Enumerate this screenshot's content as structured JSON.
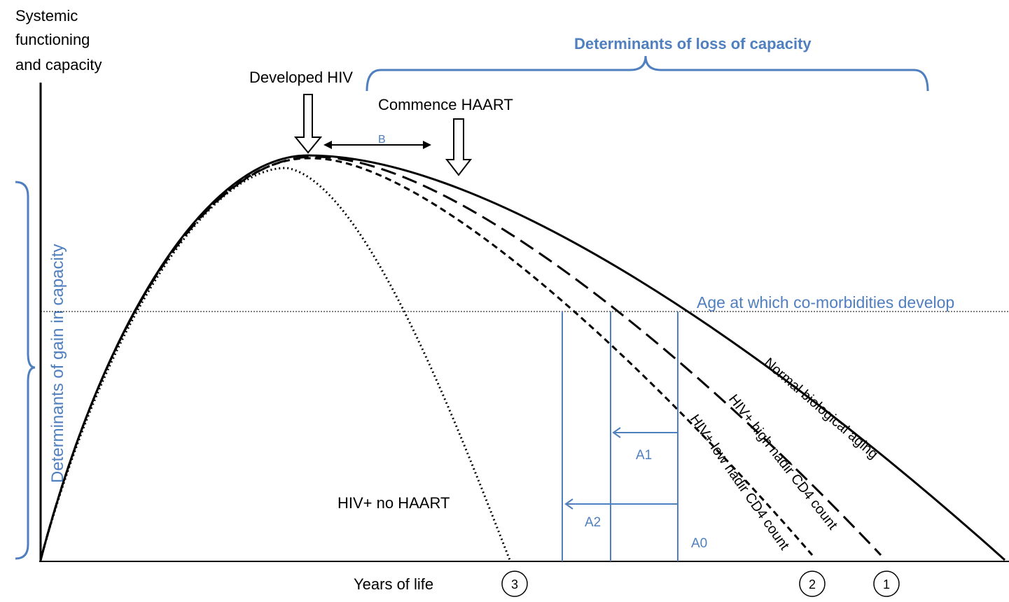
{
  "y_axis_label": [
    "Systemic",
    "functioning",
    "and capacity"
  ],
  "x_axis_label": "Years of life",
  "loss_bracket_label": "Determinants of loss of capacity",
  "gain_bracket_label": "Determinants of gain in capacity",
  "events": {
    "developed": "Developed HIV",
    "commence": "Commence HAART",
    "delay": "B"
  },
  "threshold_label": "Age at which co-morbidities develop",
  "curves": {
    "normal": "Normal biological aging",
    "high": "HIV+ high nadir CD4 count",
    "low": "HIV+ low nadir CD4 count",
    "none": "HIV+ no HAART"
  },
  "intervals": {
    "a1": "A1",
    "a2": "A2",
    "a0": "A0"
  },
  "endpoints": [
    "3",
    "2",
    "1"
  ]
}
